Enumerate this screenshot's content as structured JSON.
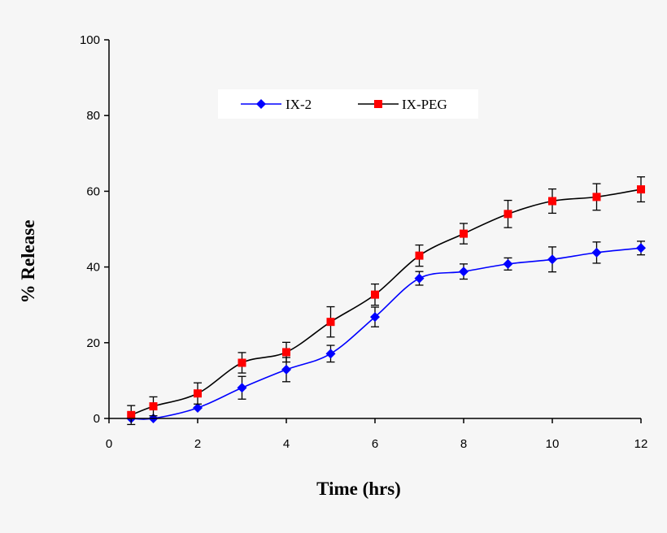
{
  "chart_data": {
    "type": "line",
    "xlabel": "Time (hrs)",
    "ylabel": "% Release",
    "xlim": [
      0,
      12
    ],
    "ylim": [
      0,
      100
    ],
    "xticks": [
      0,
      2,
      4,
      6,
      8,
      10,
      12
    ],
    "yticks": [
      0,
      20,
      40,
      60,
      80,
      100
    ],
    "grid": false,
    "legend_position": "top-center",
    "series": [
      {
        "name": "IX-2",
        "color": "#0000ff",
        "marker": "diamond",
        "x": [
          0.5,
          1,
          2,
          3,
          4,
          5,
          6,
          7,
          8,
          9,
          10,
          11,
          12
        ],
        "y": [
          0,
          0,
          2.8,
          8.1,
          12.9,
          17.1,
          26.8,
          37.0,
          38.8,
          40.8,
          42.0,
          43.8,
          45.0
        ],
        "err": [
          0,
          0,
          0,
          3.0,
          3.2,
          2.2,
          2.6,
          1.8,
          2.0,
          1.6,
          3.3,
          2.8,
          1.8
        ]
      },
      {
        "name": "IX-PEG",
        "color": "#ff0000",
        "marker": "square",
        "x": [
          0.5,
          1,
          2,
          3,
          4,
          5,
          6,
          7,
          8,
          9,
          10,
          11,
          12
        ],
        "y": [
          0.9,
          3.2,
          6.6,
          14.7,
          17.5,
          25.5,
          32.7,
          43.0,
          48.8,
          54.0,
          57.4,
          58.5,
          60.5
        ],
        "err": [
          2.5,
          2.5,
          2.8,
          2.7,
          2.6,
          4.0,
          2.8,
          2.8,
          2.7,
          3.6,
          3.2,
          3.5,
          3.3
        ]
      }
    ]
  }
}
